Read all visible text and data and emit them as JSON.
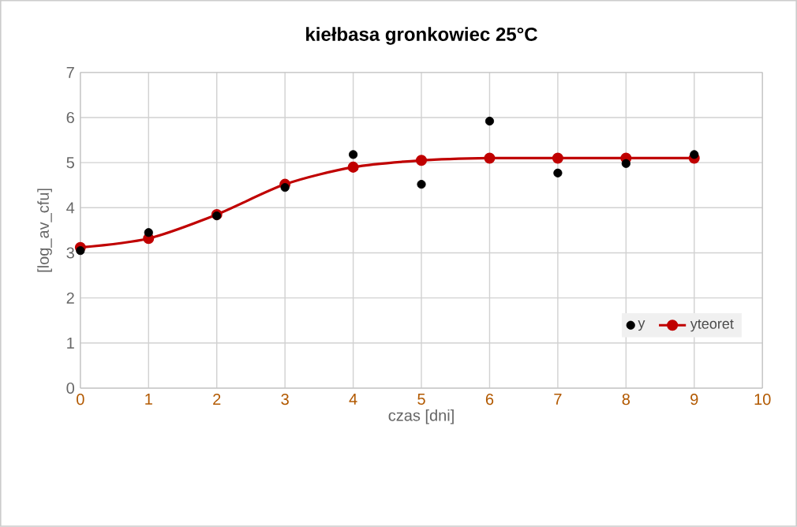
{
  "chart_data": {
    "type": "scatter",
    "title": "kiełbasa gronkowiec 25°C",
    "xlabel": "czas  [dni]",
    "ylabel": "[log_av_cfu]",
    "x": [
      0,
      1,
      2,
      3,
      4,
      5,
      6,
      7,
      8,
      9
    ],
    "series": [
      {
        "name": "y",
        "color": "#000000",
        "marker": "circle",
        "values": [
          3.05,
          3.45,
          3.82,
          4.45,
          5.18,
          4.52,
          5.92,
          4.77,
          4.98,
          5.18
        ]
      },
      {
        "name": "yteoret",
        "type": "line",
        "color": "#c00000",
        "marker": "circle",
        "line_style": "solid",
        "values": [
          3.12,
          3.32,
          3.85,
          4.52,
          4.9,
          5.05,
          5.1,
          5.1,
          5.1,
          5.1
        ]
      }
    ],
    "xlim": [
      0,
      10
    ],
    "ylim": [
      0,
      7
    ],
    "xticks": [
      0,
      1,
      2,
      3,
      4,
      5,
      6,
      7,
      8,
      9,
      10
    ],
    "yticks": [
      0,
      1,
      2,
      3,
      4,
      5,
      6,
      7
    ],
    "grid": true,
    "legend": "bottom right"
  }
}
